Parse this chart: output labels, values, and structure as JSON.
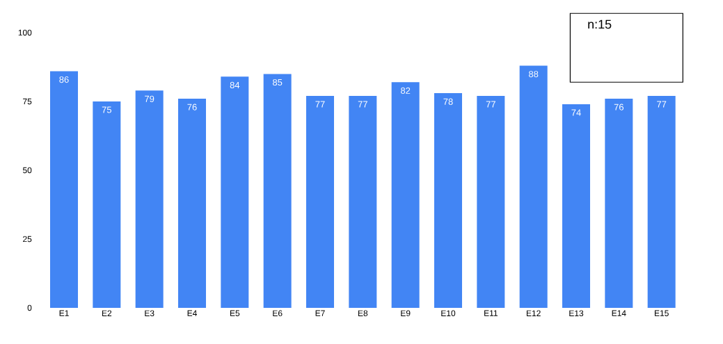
{
  "chart_data": {
    "type": "bar",
    "categories": [
      "E1",
      "E2",
      "E3",
      "E4",
      "E5",
      "E6",
      "E7",
      "E8",
      "E9",
      "E10",
      "E11",
      "E12",
      "E13",
      "E14",
      "E15"
    ],
    "values": [
      86,
      75,
      79,
      76,
      84,
      85,
      77,
      77,
      82,
      78,
      77,
      88,
      74,
      76,
      77
    ],
    "color": "#4285f4",
    "ylim": [
      0,
      100
    ],
    "yticks": [
      0,
      25,
      50,
      75,
      100
    ],
    "data_labels": true,
    "annotations": [
      "n:15"
    ]
  }
}
